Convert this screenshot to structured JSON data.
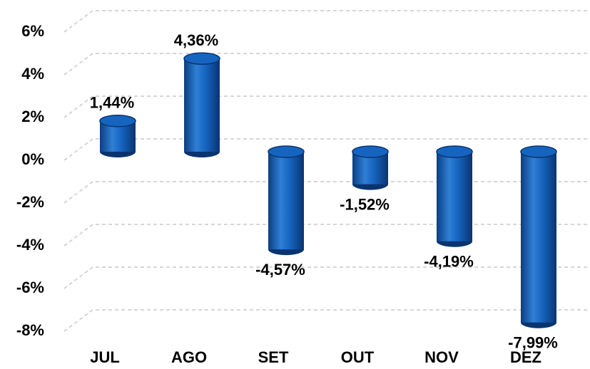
{
  "chart_data": {
    "type": "bar3d",
    "categories": [
      "JUL",
      "AGO",
      "SET",
      "OUT",
      "NOV",
      "DEZ"
    ],
    "values": [
      1.44,
      4.36,
      -4.57,
      -1.52,
      -4.19,
      -7.99
    ],
    "value_labels": [
      "1,44%",
      "4,36%",
      "-4,57%",
      "-1,52%",
      "-4,19%",
      "-7,99%"
    ],
    "color": "#1565c0",
    "ylim": [
      -8,
      6
    ],
    "yticks": [
      {
        "value": 6,
        "label": "6%"
      },
      {
        "value": 4,
        "label": "4%"
      },
      {
        "value": 2,
        "label": "2%"
      },
      {
        "value": 0,
        "label": "0%"
      },
      {
        "value": -2,
        "label": "-2%"
      },
      {
        "value": -4,
        "label": "-4%"
      },
      {
        "value": -6,
        "label": "-6%"
      },
      {
        "value": -8,
        "label": "-8%"
      }
    ],
    "grid": true
  }
}
